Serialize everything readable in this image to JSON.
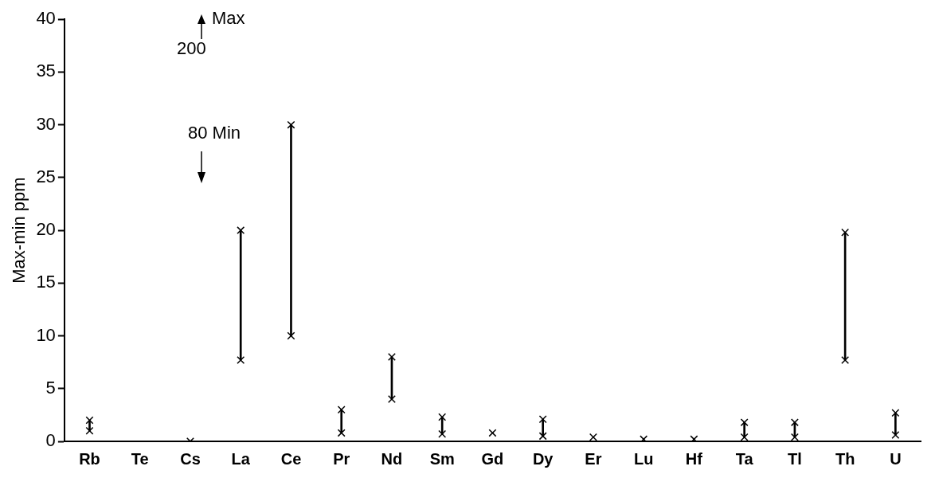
{
  "chart_data": {
    "type": "bar",
    "ylabel": "Max-min ppm",
    "categories": [
      "Rb",
      "Te",
      "Cs",
      "La",
      "Ce",
      "Pr",
      "Nd",
      "Sm",
      "Gd",
      "Dy",
      "Er",
      "Lu",
      "Hf",
      "Ta",
      "Tl",
      "Th",
      "U"
    ],
    "series": [
      {
        "color": "#000000",
        "base": [
          1,
          null,
          0,
          7.7,
          10,
          0.8,
          4,
          0.7,
          0.8,
          0.5,
          0.4,
          0.2,
          0.2,
          0.4,
          0.4,
          7.7,
          0.6
        ],
        "values": [
          1,
          null,
          0,
          12.3,
          20,
          2.2,
          4,
          1.6,
          0,
          1.6,
          0,
          0,
          0,
          1.4,
          1.4,
          12.1,
          2.1
        ]
      },
      {
        "type": "scatter",
        "color": "#000000",
        "marker": "cross",
        "x": [
          "Rb",
          "Te",
          "Cs",
          "La",
          "Ce",
          "Pr",
          "Nd",
          "Sm",
          "Gd",
          "Dy",
          "Er",
          "Lu",
          "Hf",
          "Ta",
          "Tl",
          "Th",
          "U"
        ],
        "values": [
          2,
          null,
          0,
          20,
          30,
          3,
          8,
          2.3,
          0.8,
          2.1,
          0.4,
          0.2,
          0.2,
          1.8,
          1.8,
          19.8,
          2.7
        ]
      },
      {
        "type": "scatter",
        "color": "#000000",
        "marker": "cross",
        "x": [
          "Rb",
          "Te",
          "Cs",
          "La",
          "Ce",
          "Pr",
          "Nd",
          "Sm",
          "Gd",
          "Dy",
          "Er",
          "Lu",
          "Hf",
          "Ta",
          "Tl",
          "Th",
          "U"
        ],
        "values": [
          1,
          null,
          null,
          7.7,
          10,
          0.8,
          4,
          0.7,
          null,
          0.5,
          null,
          null,
          null,
          0.4,
          0.4,
          7.7,
          0.6
        ]
      }
    ],
    "ylim": [
      0,
      40
    ],
    "yticks": [
      0,
      5,
      10,
      15,
      20,
      25,
      30,
      35,
      40
    ],
    "grid": false,
    "annotations": [
      "Max",
      "200",
      "80 Min"
    ]
  }
}
